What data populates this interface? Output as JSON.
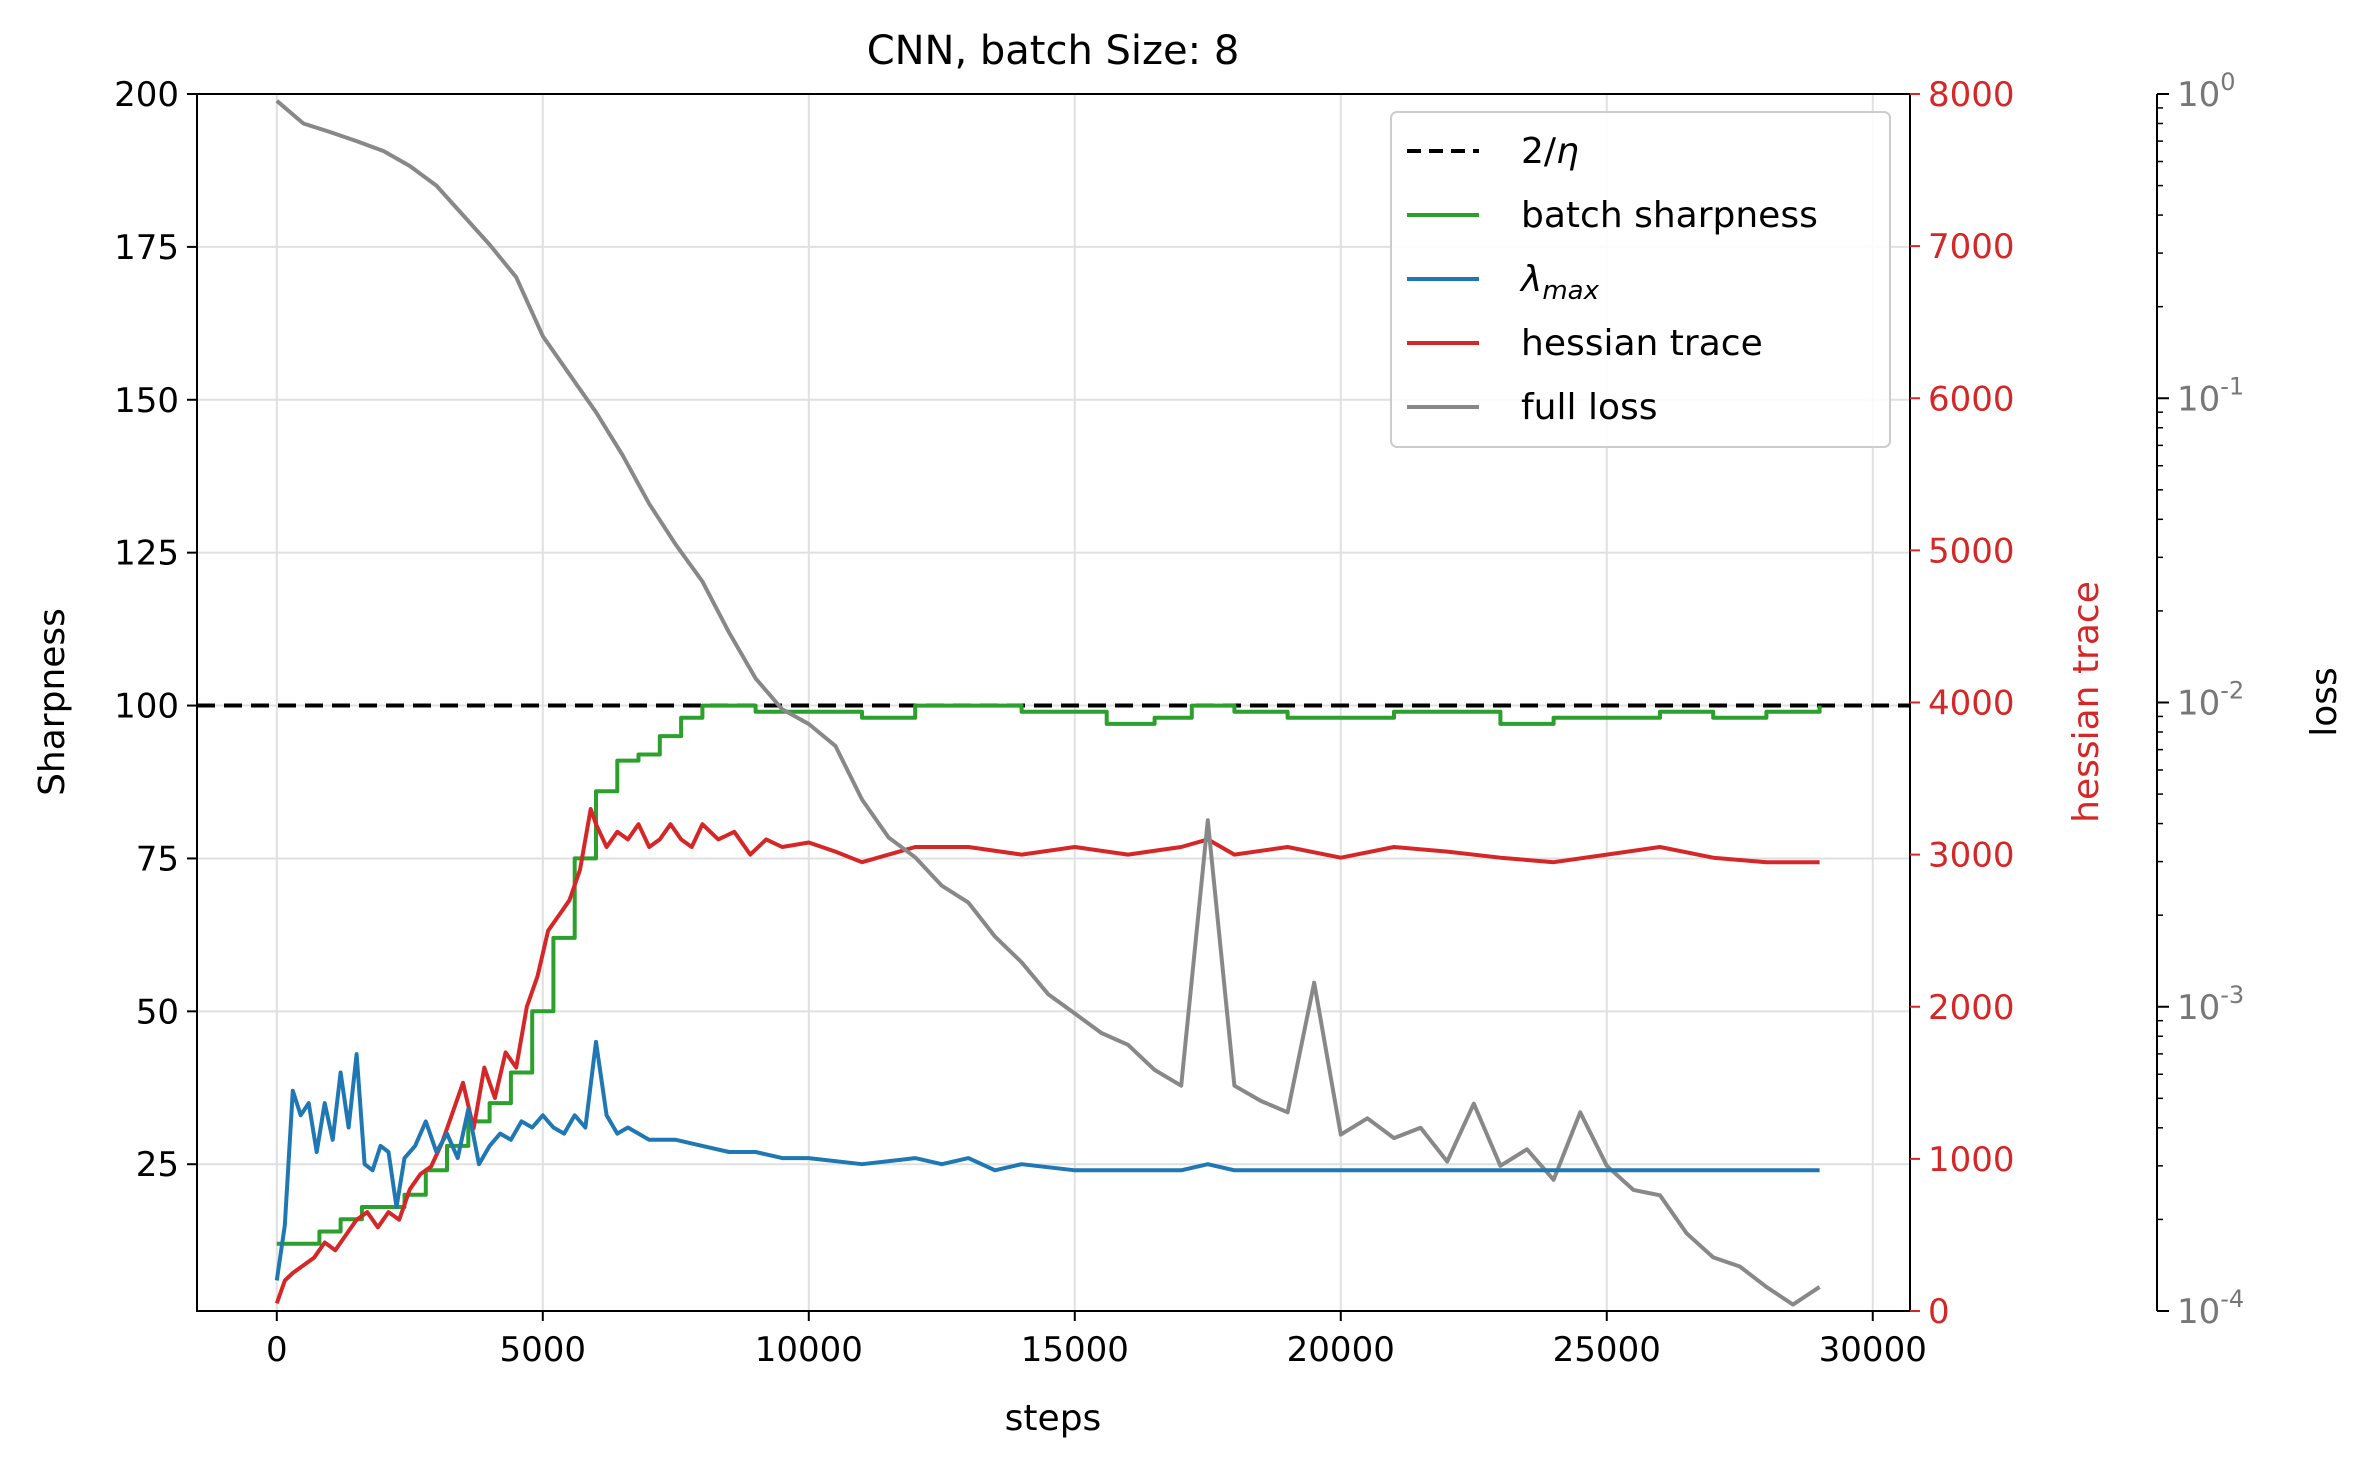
{
  "chart_data": {
    "type": "line",
    "title": "CNN, batch Size: 8",
    "xlabel": "steps",
    "ylabel_left": "Sharpness",
    "ylabel_right": "hessian trace",
    "ylabel_far_right": "loss",
    "xlim": [
      -1500,
      30700
    ],
    "ylim_left": [
      1,
      200
    ],
    "ylim_right": [
      0,
      8000
    ],
    "ylim_far_right_log10": [
      -4,
      0
    ],
    "grid": true,
    "legend_position": "top-right",
    "x_ticks": [
      "0",
      "5000",
      "10000",
      "15000",
      "20000",
      "25000",
      "30000"
    ],
    "y_ticks_left": [
      "25",
      "50",
      "75",
      "100",
      "125",
      "150",
      "175",
      "200"
    ],
    "y_ticks_right": [
      "0",
      "1000",
      "2000",
      "3000",
      "4000",
      "5000",
      "6000",
      "7000",
      "8000"
    ],
    "y_ticks_far_right": [
      "10^-4",
      "10^-3",
      "10^-2",
      "10^-1",
      "10^0"
    ],
    "legend": [
      {
        "label": "2/η",
        "color": "#000000",
        "style": "dashed"
      },
      {
        "label": "batch sharpness",
        "color": "#2ca02c",
        "style": "solid"
      },
      {
        "label": "λmax",
        "color": "#1f77b4",
        "style": "solid"
      },
      {
        "label": "hessian trace",
        "color": "#d62728",
        "style": "solid"
      },
      {
        "label": "full loss",
        "color": "#888888",
        "style": "solid"
      }
    ],
    "threshold_2_over_eta": 100,
    "series": [
      {
        "name": "batch sharpness",
        "axis": "left",
        "color": "#2ca02c",
        "step": true,
        "x": [
          0,
          400,
          800,
          1200,
          1600,
          2000,
          2400,
          2800,
          3200,
          3600,
          4000,
          4400,
          4800,
          5200,
          5600,
          6000,
          6400,
          6800,
          7200,
          7600,
          8000,
          9000,
          10000,
          11000,
          12000,
          13000,
          14000,
          15000,
          15600,
          16500,
          17200,
          18000,
          19000,
          20000,
          21000,
          22000,
          23000,
          24000,
          25000,
          26000,
          27000,
          28000,
          29000
        ],
        "y": [
          12,
          12,
          14,
          16,
          18,
          18,
          20,
          24,
          28,
          32,
          35,
          40,
          50,
          62,
          75,
          86,
          91,
          92,
          95,
          98,
          100,
          99,
          99,
          98,
          100,
          100,
          99,
          99,
          97,
          98,
          100,
          99,
          98,
          98,
          99,
          99,
          97,
          98,
          98,
          99,
          98,
          99,
          100
        ]
      },
      {
        "name": "λmax",
        "axis": "left",
        "color": "#1f77b4",
        "x": [
          0,
          150,
          300,
          450,
          600,
          750,
          900,
          1050,
          1200,
          1350,
          1500,
          1650,
          1800,
          1950,
          2100,
          2250,
          2400,
          2600,
          2800,
          3000,
          3200,
          3400,
          3600,
          3800,
          4000,
          4200,
          4400,
          4600,
          4800,
          5000,
          5200,
          5400,
          5600,
          5800,
          6000,
          6200,
          6400,
          6600,
          6800,
          7000,
          7500,
          8000,
          8500,
          9000,
          9500,
          10000,
          11000,
          12000,
          12500,
          13000,
          13500,
          14000,
          15000,
          16000,
          17000,
          17500,
          18000,
          19000,
          20000,
          21000,
          22000,
          23000,
          24000,
          25000,
          26000,
          27000,
          28000,
          29000
        ],
        "y": [
          6,
          15,
          37,
          33,
          35,
          27,
          35,
          29,
          40,
          31,
          43,
          25,
          24,
          28,
          27,
          18,
          26,
          28,
          32,
          27,
          30,
          26,
          34,
          25,
          28,
          30,
          29,
          32,
          31,
          33,
          31,
          30,
          33,
          31,
          45,
          33,
          30,
          31,
          30,
          29,
          29,
          28,
          27,
          27,
          26,
          26,
          25,
          26,
          25,
          26,
          24,
          25,
          24,
          24,
          24,
          25,
          24,
          24,
          24,
          24,
          24,
          24,
          24,
          24,
          24,
          24,
          24,
          24
        ]
      },
      {
        "name": "hessian trace",
        "axis": "right",
        "color": "#d62728",
        "x": [
          0,
          150,
          300,
          500,
          700,
          900,
          1100,
          1300,
          1500,
          1700,
          1900,
          2100,
          2300,
          2500,
          2700,
          2900,
          3100,
          3300,
          3500,
          3700,
          3900,
          4100,
          4300,
          4500,
          4700,
          4900,
          5100,
          5300,
          5500,
          5700,
          5900,
          6000,
          6200,
          6400,
          6600,
          6800,
          7000,
          7200,
          7400,
          7600,
          7800,
          8000,
          8300,
          8600,
          8900,
          9200,
          9500,
          10000,
          10500,
          11000,
          12000,
          13000,
          14000,
          15000,
          16000,
          17000,
          17500,
          18000,
          19000,
          20000,
          21000,
          22000,
          23000,
          24000,
          25000,
          26000,
          27000,
          28000,
          29000
        ],
        "y": [
          50,
          200,
          250,
          300,
          350,
          450,
          400,
          500,
          600,
          650,
          550,
          650,
          600,
          800,
          900,
          950,
          1100,
          1300,
          1500,
          1200,
          1600,
          1400,
          1700,
          1600,
          2000,
          2200,
          2500,
          2600,
          2700,
          2900,
          3300,
          3200,
          3050,
          3150,
          3100,
          3200,
          3050,
          3100,
          3200,
          3100,
          3050,
          3200,
          3100,
          3150,
          3000,
          3100,
          3050,
          3080,
          3020,
          2950,
          3050,
          3050,
          3000,
          3050,
          3000,
          3050,
          3100,
          3000,
          3050,
          2980,
          3050,
          3020,
          2980,
          2950,
          3000,
          3050,
          2980,
          2950,
          2950
        ]
      },
      {
        "name": "full loss",
        "axis": "far_right",
        "color": "#888888",
        "log": true,
        "x": [
          0,
          500,
          1000,
          1500,
          2000,
          2500,
          3000,
          3500,
          4000,
          4500,
          5000,
          5500,
          6000,
          6500,
          7000,
          7500,
          8000,
          8500,
          9000,
          9500,
          10000,
          10500,
          11000,
          11500,
          12000,
          12500,
          13000,
          13500,
          14000,
          14500,
          15000,
          15500,
          16000,
          16500,
          17000,
          17500,
          18000,
          18500,
          19000,
          19500,
          20000,
          20500,
          21000,
          21500,
          22000,
          22500,
          23000,
          23500,
          24000,
          24500,
          25000,
          25500,
          26000,
          26500,
          27000,
          27500,
          28000,
          28500,
          29000
        ],
        "y": [
          0.95,
          0.8,
          0.75,
          0.7,
          0.65,
          0.58,
          0.5,
          0.4,
          0.32,
          0.25,
          0.16,
          0.12,
          0.09,
          0.065,
          0.045,
          0.033,
          0.025,
          0.017,
          0.012,
          0.0095,
          0.0085,
          0.0072,
          0.0048,
          0.0036,
          0.0031,
          0.0025,
          0.0022,
          0.0017,
          0.0014,
          0.0011,
          0.00095,
          0.00082,
          0.00075,
          0.00062,
          0.00055,
          0.0041,
          0.00055,
          0.00049,
          0.00045,
          0.0012,
          0.00038,
          0.00043,
          0.00037,
          0.0004,
          0.00031,
          0.00048,
          0.0003,
          0.00034,
          0.00027,
          0.00045,
          0.0003,
          0.00025,
          0.00024,
          0.00018,
          0.00015,
          0.00014,
          0.00012,
          0.000105,
          0.00012
        ]
      }
    ]
  }
}
